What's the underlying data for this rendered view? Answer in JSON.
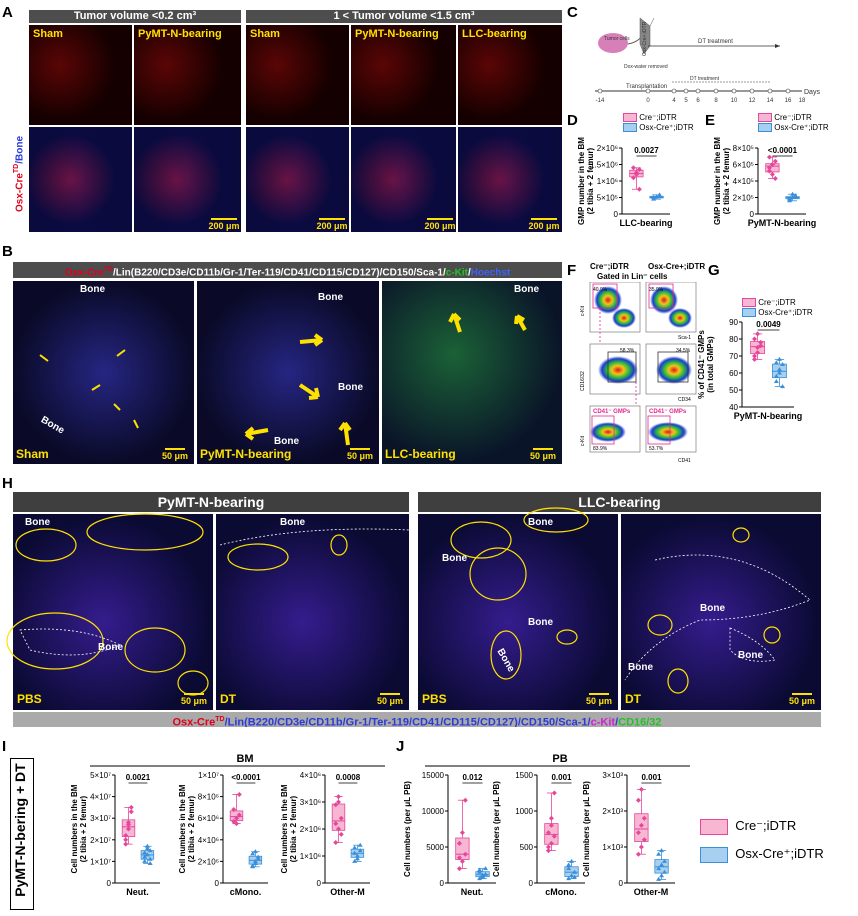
{
  "panels": {
    "a": "A",
    "b": "B",
    "c": "C",
    "d": "D",
    "e": "E",
    "f": "F",
    "g": "G",
    "h": "H",
    "i": "I",
    "j": "J"
  },
  "panelA": {
    "header_left": "Tumor volume <0.2 cm³",
    "header_right": "1 < Tumor volume <1.5 cm³",
    "side_label_red": "Osx-Cre",
    "side_label_sup": "TD",
    "side_label_blue": "/Bone",
    "columns": [
      "Sham",
      "PyMT-N-bearing",
      "Sham",
      "PyMT-N-bearing",
      "LLC-bearing"
    ],
    "scalebar": "200 μm"
  },
  "panelB": {
    "stain_parts": [
      {
        "text": "Osx-Cre",
        "color": "#e0001b"
      },
      {
        "text": "TD",
        "color": "#e0001b",
        "sup": true
      },
      {
        "text": "/Lin(B220/CD3e/CD11b/Gr-1/Ter-119/CD41/CD115/CD127)/CD150/Sca-1/",
        "color": "#ffffff"
      },
      {
        "text": "c-Kit",
        "color": "#22c322"
      },
      {
        "text": "/",
        "color": "#ffffff"
      },
      {
        "text": "Hoechst",
        "color": "#3d62ff"
      }
    ],
    "columns": [
      "Sham",
      "PyMT-N-bearing",
      "LLC-bearing"
    ],
    "bone": "Bone",
    "scalebar": "50 μm"
  },
  "panelC": {
    "tumor_cells": "Tumor cells",
    "strain": "Osx-Cre+;iDTR",
    "dox": "Dox-water removed",
    "transplantation": "Transplantation",
    "dt_top": "DT treatment",
    "dt_bottom": "DT treatment",
    "days": "Days",
    "ticks": [
      "-14",
      "0",
      "4",
      "5",
      "6",
      "8",
      "10",
      "12",
      "14",
      "16",
      "18"
    ]
  },
  "legend_pair": {
    "cre_neg": "Cre⁻;iDTR",
    "osx_pos": "Osx-Cre⁺;iDTR"
  },
  "colors": {
    "pink": "#f7b6d2",
    "pink_dot": "#e5479a",
    "blue": "#a6cff0",
    "blue_dot": "#3a8fd8",
    "yellow": "#ffe100",
    "hdr": "#4d4d4d"
  },
  "panelD": {
    "ylabel": "GMP number in the BM (2 tibia + 2 femur)",
    "xlabel": "LLC-bearing",
    "pvalue": "0.0027",
    "yticks": [
      "0",
      "5×10⁵",
      "1×10⁶",
      "1.5×10⁶",
      "2×10⁶"
    ]
  },
  "panelE": {
    "ylabel": "GMP number in the BM (2 tibia + 2 femur)",
    "xlabel": "PyMT-N-bearing",
    "pvalue": "<0.0001",
    "yticks": [
      "0",
      "2×10⁵",
      "4×10⁵",
      "6×10⁵",
      "8×10⁵"
    ]
  },
  "panelF": {
    "col1": "Cre⁻;iDTR",
    "col2": "Osx-Cre+;iDTR",
    "gated": "Gated in Lin⁻ cells",
    "axes": {
      "ckit": "c-Kit",
      "sca1": "Sca-1",
      "cd1632": "CD16/32",
      "cd34": "CD34",
      "cd41": "CD41"
    },
    "pct": {
      "r1a": "40.9%",
      "r1b": "35.9%",
      "r2a": "58.3%",
      "r2b": "34.5%",
      "r3a": "83.9%",
      "r3b": "53.7%"
    },
    "gate": "CD41⁻ GMPs"
  },
  "panelG": {
    "ylabel": "% of CD41⁻ GMPs (in total GMPs)",
    "xlabel": "PyMT-N-bearing",
    "pvalue": "0.0049",
    "yticks": [
      "40",
      "50",
      "60",
      "70",
      "80",
      "90"
    ]
  },
  "panelH": {
    "header_left": "PyMT-N-bearing",
    "header_right": "LLC-bearing",
    "conditions": [
      "PBS",
      "DT",
      "PBS",
      "DT"
    ],
    "bone": "Bone",
    "scalebar": "50 μm",
    "stain_parts": [
      {
        "text": "Osx-Cre",
        "color": "#e0001b"
      },
      {
        "text": "TD",
        "color": "#e0001b",
        "sup": true
      },
      {
        "text": "/Lin(B220/CD3e/CD11b/Gr-1/Ter-119/CD41/CD115/CD127)/CD150/Sca-1/",
        "color": "#2b3bd6"
      },
      {
        "text": "c-Kit",
        "color": "#d21fd6"
      },
      {
        "text": "/",
        "color": "#2b3bd6"
      },
      {
        "text": "CD16/32",
        "color": "#22c322"
      }
    ]
  },
  "panelI": {
    "side_label": "PyMT-N-bering + DT",
    "group": "BM",
    "ylabel": "Cell numbers in the BM (2 tibia + 2 femur)",
    "plots": [
      {
        "xlabel": "Neut.",
        "pvalue": "0.0021",
        "yticks": [
          "0",
          "1×10⁷",
          "2×10⁷",
          "3×10⁷",
          "4×10⁷",
          "5×10⁷"
        ]
      },
      {
        "xlabel": "cMono.",
        "pvalue": "<0.0001",
        "yticks": [
          "0",
          "2×10⁶",
          "4×10⁶",
          "6×10⁶",
          "8×10⁶",
          "1×10⁷"
        ]
      },
      {
        "xlabel": "Other-M",
        "pvalue": "0.0008",
        "yticks": [
          "0",
          "1×10⁶",
          "2×10⁶",
          "3×10⁶",
          "4×10⁶"
        ]
      }
    ]
  },
  "panelJ": {
    "group": "PB",
    "ylabel": "Cell numbers (per μL PB)",
    "plots": [
      {
        "xlabel": "Neut.",
        "pvalue": "0.012",
        "yticks": [
          "0",
          "5000",
          "10000",
          "15000"
        ]
      },
      {
        "xlabel": "cMono.",
        "pvalue": "0.001",
        "yticks": [
          "0",
          "500",
          "1000",
          "1500"
        ]
      },
      {
        "xlabel": "Other-M",
        "pvalue": "0.001",
        "yticks": [
          "0",
          "1×10³",
          "2×10³",
          "3×10³"
        ]
      }
    ]
  },
  "chart_data": [
    {
      "type": "box",
      "id": "D",
      "categories": [
        "Cre⁻;iDTR",
        "Osx-Cre⁺;iDTR"
      ],
      "series": [
        {
          "name": "Cre⁻;iDTR",
          "values": [
            1100000,
            1250000,
            1350000,
            1400000,
            1200000,
            750000
          ]
        },
        {
          "name": "Osx-Cre⁺;iDTR",
          "values": [
            450000,
            520000,
            580000,
            500000
          ]
        }
      ],
      "ylim": [
        0,
        2000000
      ],
      "ylabel": "GMP number in the BM (2 tibia + 2 femur)",
      "xlabel": "LLC-bearing"
    },
    {
      "type": "box",
      "id": "E",
      "categories": [
        "Cre⁻;iDTR",
        "Osx-Cre⁺;iDTR"
      ],
      "series": [
        {
          "name": "Cre⁻;iDTR",
          "values": [
            560000,
            600000,
            640000,
            520000,
            480000,
            430000,
            690000,
            600000
          ]
        },
        {
          "name": "Osx-Cre⁺;iDTR",
          "values": [
            180000,
            200000,
            220000,
            160000,
            240000,
            200000,
            190000
          ]
        }
      ],
      "ylim": [
        0,
        800000
      ],
      "ylabel": "GMP number in the BM (2 tibia + 2 femur)",
      "xlabel": "PyMT-N-bearing"
    },
    {
      "type": "box",
      "id": "G",
      "categories": [
        "Cre⁻;iDTR",
        "Osx-Cre⁺;iDTR"
      ],
      "series": [
        {
          "name": "Cre⁻;iDTR",
          "values": [
            70,
            75,
            78,
            80,
            72,
            76,
            68,
            83
          ]
        },
        {
          "name": "Osx-Cre⁺;iDTR",
          "values": [
            55,
            62,
            65,
            58,
            60,
            52,
            66,
            68
          ]
        }
      ],
      "ylim": [
        40,
        90
      ],
      "ylabel": "% of CD41⁻ GMPs (in total GMPs)",
      "xlabel": "PyMT-N-bearing"
    },
    {
      "type": "box",
      "id": "I-Neut",
      "series": [
        {
          "name": "Cre⁻;iDTR",
          "values": [
            22000000,
            28000000,
            33000000,
            18000000,
            25000000,
            35000000,
            20000000,
            27000000
          ]
        },
        {
          "name": "Osx-Cre⁺;iDTR",
          "values": [
            10000000,
            13000000,
            15000000,
            12000000,
            17000000,
            9000000,
            14000000,
            16000000,
            11000000
          ]
        }
      ],
      "ylim": [
        0,
        50000000
      ],
      "xlabel": "Neut."
    },
    {
      "type": "box",
      "id": "I-cMono",
      "series": [
        {
          "name": "Cre⁻;iDTR",
          "values": [
            5700000,
            6000000,
            6300000,
            6800000,
            5500000,
            8200000
          ]
        },
        {
          "name": "Osx-Cre⁺;iDTR",
          "values": [
            1600000,
            2000000,
            2400000,
            2700000,
            1800000,
            2200000,
            1500000,
            2900000
          ]
        }
      ],
      "ylim": [
        0,
        10000000
      ],
      "xlabel": "cMono."
    },
    {
      "type": "box",
      "id": "I-Other-M",
      "series": [
        {
          "name": "Cre⁻;iDTR",
          "values": [
            1500000,
            2000000,
            2400000,
            2900000,
            3000000,
            1800000,
            2200000,
            3200000
          ]
        },
        {
          "name": "Osx-Cre⁺;iDTR",
          "values": [
            800000,
            1000000,
            1200000,
            1100000,
            900000,
            1400000,
            1300000
          ]
        }
      ],
      "ylim": [
        0,
        4000000
      ],
      "xlabel": "Other-M"
    },
    {
      "type": "box",
      "id": "J-Neut",
      "series": [
        {
          "name": "Cre⁻;iDTR",
          "values": [
            2000,
            3000,
            4000,
            5500,
            7000,
            11500,
            3500
          ]
        },
        {
          "name": "Osx-Cre⁺;iDTR",
          "values": [
            600,
            900,
            1200,
            1500,
            800,
            2000,
            1800,
            1100
          ]
        }
      ],
      "ylim": [
        0,
        15000
      ],
      "xlabel": "Neut."
    },
    {
      "type": "box",
      "id": "J-cMono",
      "series": [
        {
          "name": "Cre⁻;iDTR",
          "values": [
            450,
            550,
            650,
            700,
            800,
            1250,
            500,
            900
          ]
        },
        {
          "name": "Osx-Cre⁺;iDTR",
          "values": [
            60,
            100,
            150,
            200,
            300,
            80,
            250
          ]
        }
      ],
      "ylim": [
        0,
        1500
      ],
      "xlabel": "cMono."
    },
    {
      "type": "box",
      "id": "J-Other-M",
      "series": [
        {
          "name": "Cre⁻;iDTR",
          "values": [
            800,
            1000,
            1200,
            1400,
            1600,
            1800,
            2300,
            2600
          ]
        },
        {
          "name": "Osx-Cre⁺;iDTR",
          "values": [
            100,
            200,
            300,
            400,
            500,
            600,
            800,
            900
          ]
        }
      ],
      "ylim": [
        0,
        3000
      ],
      "xlabel": "Other-M"
    }
  ]
}
